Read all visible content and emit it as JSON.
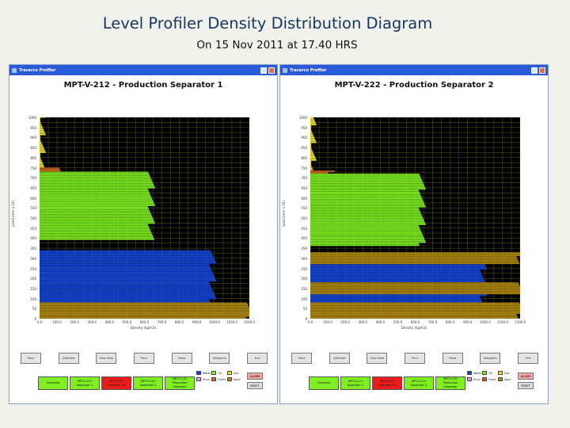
{
  "slide": {
    "title": "Level Profiler Density Distribution Diagram",
    "subtitle": "On 15 Nov 2011 at 17.40 HRS"
  },
  "colors": {
    "water": "#1446d8",
    "oil": "#7fef22",
    "gas": "#f0e22a",
    "sand": "#b08a13",
    "emulsion": "#d9a8d8",
    "foam": "#d2691e",
    "plot_bg": "#000000",
    "grid": "#5a5a18"
  },
  "windows": [
    {
      "window_title": "Tracerco Profiler",
      "chart_title": "MPT-V-212 - Production Separator 1",
      "y_ticks": [
        "1000",
        "950",
        "900",
        "850",
        "800",
        "750",
        "700",
        "650",
        "600",
        "550",
        "500",
        "450",
        "400",
        "350",
        "300",
        "250",
        "200",
        "150",
        "100",
        "50",
        "0"
      ],
      "x_ticks": [
        "0.0",
        "100.0",
        "200.0",
        "300.0",
        "400.0",
        "500.0",
        "600.0",
        "700.0",
        "800.0",
        "900.0",
        "1000.0",
        "1100.0",
        "1200.0"
      ],
      "y_label": "Level (mm x 10)",
      "x_label": "Density (kg/m3)",
      "buttons": [
        "Start",
        "Calibrate",
        "View Data",
        "Print",
        "Trend",
        "Setpoints",
        "Exit"
      ],
      "status_boxes": [
        {
          "line1": "Overview",
          "line2": "",
          "color": "#7fef22"
        },
        {
          "line1": "MPT-V-212",
          "line2": "Separator 1",
          "color": "#7fef22"
        },
        {
          "line1": "MPT-V-213",
          "line2": "Separator 1A",
          "color": "#ee1b1b"
        },
        {
          "line1": "MPT-V-222",
          "line2": "Separator 2",
          "color": "#7fef22"
        },
        {
          "line1": "MPT-V-231",
          "line2": "Production Separator",
          "color": "#7fef22"
        }
      ],
      "chart_data": {
        "type": "area",
        "y_unit": "level",
        "x_unit": "density",
        "xlim": [
          0,
          1200
        ],
        "ylim": [
          0,
          1000
        ],
        "layers": [
          {
            "name": "Water",
            "y_from": 80,
            "y_to": 340,
            "density": 990
          },
          {
            "name": "Oil",
            "y_from": 390,
            "y_to": 730,
            "density": 640
          },
          {
            "name": "Foam",
            "y_from": 730,
            "y_to": 750,
            "density": 120
          },
          {
            "name": "Gas",
            "y_from": 750,
            "y_to": 1000,
            "density": 15
          },
          {
            "name": "Sand",
            "y_from": 0,
            "y_to": 80,
            "density": 1200
          }
        ]
      }
    },
    {
      "window_title": "Tracerco Profiler",
      "chart_title": "MPT-V-222 - Production Separator 2",
      "y_ticks": [
        "1000",
        "950",
        "900",
        "850",
        "800",
        "750",
        "700",
        "650",
        "600",
        "550",
        "500",
        "450",
        "400",
        "350",
        "300",
        "250",
        "200",
        "150",
        "100",
        "50",
        "0"
      ],
      "x_ticks": [
        "0.0",
        "100.0",
        "200.0",
        "300.0",
        "400.0",
        "500.0",
        "600.0",
        "700.0",
        "800.0",
        "900.0",
        "1000.0",
        "1100.0",
        "1200.0"
      ],
      "y_label": "Level (mm x 10)",
      "x_label": "Density (kg/m3)",
      "buttons": [
        "Start",
        "Calibrate",
        "View Data",
        "Print",
        "Trend",
        "Setpoints",
        "Exit"
      ],
      "status_boxes": [
        {
          "line1": "Overview",
          "line2": "",
          "color": "#7fef22"
        },
        {
          "line1": "MPT-V-212",
          "line2": "Separator 1",
          "color": "#7fef22"
        },
        {
          "line1": "MPT-V-213",
          "line2": "Separator 1A",
          "color": "#ee1b1b"
        },
        {
          "line1": "MPT-V-222",
          "line2": "Separator 2",
          "color": "#7fef22"
        },
        {
          "line1": "MPT-V-231",
          "line2": "Production Separator",
          "color": "#7fef22"
        }
      ],
      "chart_data": {
        "type": "area",
        "y_unit": "level",
        "x_unit": "density",
        "xlim": [
          0,
          1200
        ],
        "ylim": [
          0,
          1000
        ],
        "layers": [
          {
            "name": "Sand",
            "y_from": 0,
            "y_to": 80,
            "density": 1200
          },
          {
            "name": "Water",
            "y_from": 80,
            "y_to": 120,
            "density": 990
          },
          {
            "name": "Sand",
            "y_from": 120,
            "y_to": 180,
            "density": 1200
          },
          {
            "name": "Water",
            "y_from": 180,
            "y_to": 270,
            "density": 990
          },
          {
            "name": "Sand",
            "y_from": 270,
            "y_to": 330,
            "density": 1200
          },
          {
            "name": "Oil",
            "y_from": 360,
            "y_to": 720,
            "density": 640
          },
          {
            "name": "Foam",
            "y_from": 720,
            "y_to": 735,
            "density": 120
          },
          {
            "name": "Gas",
            "y_from": 735,
            "y_to": 1000,
            "density": 15
          }
        ]
      }
    }
  ],
  "legend": [
    {
      "label": "Water",
      "color": "#1446d8"
    },
    {
      "label": "Oil",
      "color": "#7fef22"
    },
    {
      "label": "Gas",
      "color": "#f0e22a"
    },
    {
      "label": "Emul",
      "color": "#d9a8d8"
    },
    {
      "label": "Foam",
      "color": "#d2691e"
    },
    {
      "label": "Sand",
      "color": "#b08a13"
    }
  ],
  "alarm_label": "ALARM",
  "reset_label": "RESET"
}
